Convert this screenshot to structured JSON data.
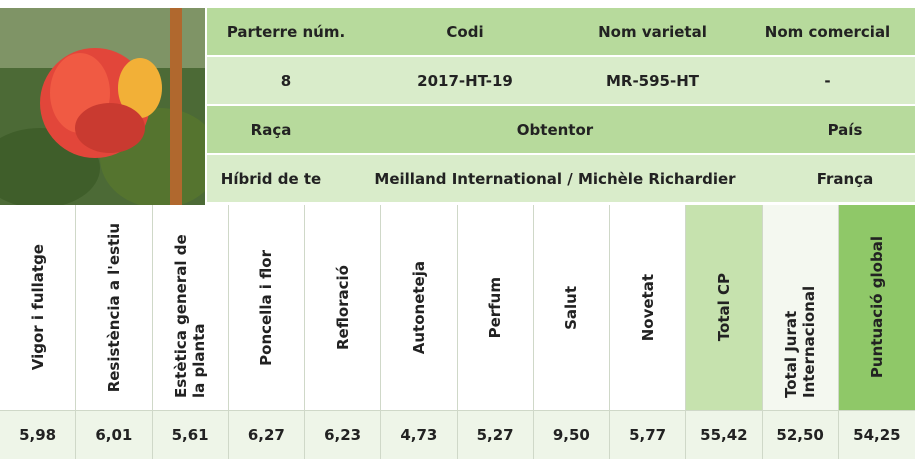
{
  "header": {
    "row1": [
      "Parterre núm.",
      "Codi",
      "Nom varietal",
      "Nom comercial"
    ],
    "row2": [
      "8",
      "2017-HT-19",
      "MR-595-HT",
      "-"
    ],
    "row3": [
      "Raça",
      "Obtentor",
      "País"
    ],
    "row4": [
      "Híbrid de te",
      "Meilland International / Michèle Richardier",
      "França"
    ]
  },
  "scores": {
    "labels": [
      "Vigor i fullatge",
      "Resistència a l'estiu",
      "Estètica general de la planta",
      "Poncella i flor",
      "Refloració",
      "Autoneteja",
      "Perfum",
      "Salut",
      "Novetat",
      "Total CP",
      "Total Jurat Internacional",
      "Puntuació global"
    ],
    "values": [
      "5,98",
      "6,01",
      "5,61",
      "6,27",
      "6,23",
      "4,73",
      "5,27",
      "9,50",
      "5,77",
      "55,42",
      "52,50",
      "54,25"
    ]
  }
}
